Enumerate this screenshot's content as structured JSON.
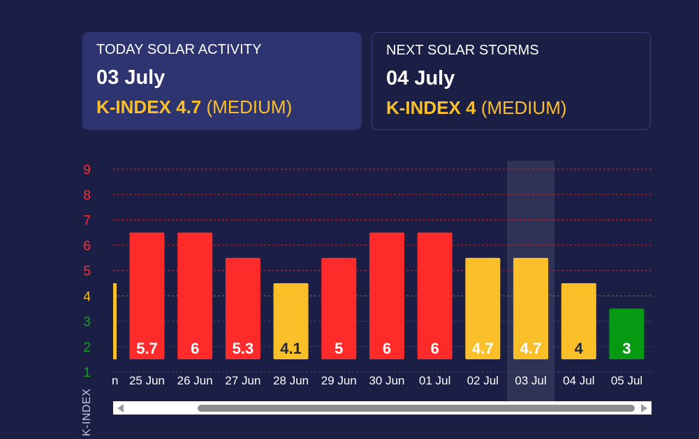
{
  "cards": {
    "today": {
      "title": "TODAY SOLAR ACTIVITY",
      "date": "03 July",
      "kindex_label": "K-INDEX 4.7",
      "level": "(MEDIUM)"
    },
    "next": {
      "title": "NEXT SOLAR STORMS",
      "date": "04 July",
      "kindex_label": "K-INDEX 4",
      "level": "(MEDIUM)"
    }
  },
  "colors": {
    "background": "#1b1f45",
    "card_highlight": "#2d3470",
    "accent_yellow": "#fbbf2a",
    "bar_red": "#ff2a2a",
    "bar_yellow": "#fbbf2a",
    "bar_green": "#069a12",
    "grid_red": "#b03040",
    "tick_red": "#ff3030",
    "tick_yellow": "#fbbf2a",
    "tick_green": "#12a51c",
    "highlight_band": "rgba(255,255,255,0.09)"
  },
  "chart_data": {
    "type": "bar",
    "ylabel": "K-INDEX",
    "ylim": [
      1,
      9
    ],
    "yticks": [
      1,
      2,
      3,
      4,
      5,
      6,
      7,
      8,
      9
    ],
    "grid": true,
    "partial_category": {
      "label": "n",
      "value": 4
    },
    "categories": [
      "25 Jun",
      "26 Jun",
      "27 Jun",
      "28 Jun",
      "29 Jun",
      "30 Jun",
      "01 Jul",
      "02 Jul",
      "03 Jul",
      "04 Jul",
      "05 Jul"
    ],
    "values": [
      5.7,
      6,
      5.3,
      4.1,
      5,
      6,
      6,
      4.7,
      4.7,
      4,
      3
    ],
    "value_labels": [
      "5.7",
      "6",
      "5.3",
      "4.1",
      "5",
      "6",
      "6",
      "4.7",
      "4.7",
      "4",
      "3"
    ],
    "highlighted_category": "03 Jul"
  },
  "scrollbar": {
    "left_icon": "arrow-left-icon",
    "right_icon": "arrow-right-icon"
  }
}
